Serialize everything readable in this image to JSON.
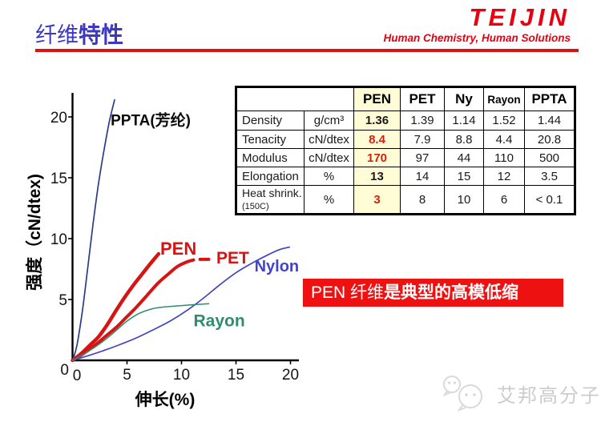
{
  "header": {
    "title_part1": "纤维",
    "title_part2": "特性",
    "underline_color": "#d61414"
  },
  "logo": {
    "brand": "TEIJIN",
    "tagline": "Human Chemistry, Human Solutions",
    "color": "#e60012"
  },
  "table": {
    "header_cols": [
      "PEN",
      "PET",
      "Ny",
      "Rayon",
      "PPTA"
    ],
    "highlight_color": "#fffcd6",
    "rows": [
      {
        "property": "Density",
        "unit": "g/cm³",
        "values": {
          "pen": "1.36",
          "pet": "1.39",
          "ny": "1.14",
          "rayon": "1.52",
          "ppta": "1.44"
        }
      },
      {
        "property": "Tenacity",
        "unit": "cN/dtex",
        "values": {
          "pen": "8.4",
          "pet": "7.9",
          "ny": "8.8",
          "rayon": "4.4",
          "ppta": "20.8"
        }
      },
      {
        "property": "Modulus",
        "unit": "cN/dtex",
        "values": {
          "pen": "170",
          "pet": "97",
          "ny": "44",
          "rayon": "110",
          "ppta": "500"
        }
      },
      {
        "property": "Elongation",
        "unit": "%",
        "values": {
          "pen": "13",
          "pet": "14",
          "ny": "15",
          "rayon": "12",
          "ppta": "3.5"
        }
      },
      {
        "property": "Heat shrink.",
        "property_sub": "(150C)",
        "unit": "%",
        "values": {
          "pen": "3",
          "pet": "8",
          "ny": "10",
          "rayon": "6",
          "ppta": "< 0.1"
        }
      }
    ]
  },
  "banner": {
    "part1": "PEN 纤维",
    "part2": "是典型的高模低缩",
    "bg": "#ee1111",
    "fg": "#ffffff"
  },
  "watermark": {
    "text": "艾邦高分子",
    "color": "#cccccc"
  },
  "chart_data": {
    "type": "line",
    "title": "",
    "xlabel": "伸长(%)",
    "ylabel": "强度（cN/dtex)",
    "xlim": [
      0,
      20
    ],
    "ylim": [
      0,
      20
    ],
    "xticks": [
      0,
      5,
      10,
      15,
      20
    ],
    "yticks": [
      0,
      5,
      10,
      15,
      20
    ],
    "grid": false,
    "legend_position": "inline-labels",
    "series": [
      {
        "name": "PPTA(芳纶)",
        "color": "#2c3a8c",
        "stroke_width": 1.7,
        "label_color": "#0b0b0b",
        "label_size": 19,
        "label_pos": [
          3.5,
          19.3
        ],
        "points": [
          [
            0,
            0
          ],
          [
            0.4,
            1.2
          ],
          [
            0.9,
            4.0
          ],
          [
            1.4,
            7.6
          ],
          [
            1.9,
            11.3
          ],
          [
            2.4,
            14.6
          ],
          [
            2.9,
            17.3
          ],
          [
            3.4,
            19.7
          ],
          [
            3.86,
            21.4
          ]
        ]
      },
      {
        "name": "PEN",
        "color": "#d61414",
        "stroke_width": 4.5,
        "label_color": "#d61414",
        "label_size": 22,
        "label_pos": [
          8.05,
          8.7
        ],
        "points": [
          [
            0,
            0
          ],
          [
            0.8,
            0.55
          ],
          [
            1.6,
            1.25
          ],
          [
            2.4,
            1.95
          ],
          [
            3.2,
            2.95
          ],
          [
            4,
            4.1
          ],
          [
            4.8,
            5.2
          ],
          [
            5.6,
            6.2
          ],
          [
            6.4,
            7.1
          ],
          [
            7.1,
            7.9
          ],
          [
            7.9,
            8.75
          ]
        ]
      },
      {
        "name": "PET",
        "color": "#d61414",
        "stroke_width": 4,
        "label_color": "#d61414",
        "label_size": 21,
        "label_pos": [
          13.2,
          7.95
        ],
        "end_dash": [
          [
            11.7,
            8.3
          ],
          [
            12.5,
            8.3
          ]
        ],
        "points": [
          [
            0,
            0
          ],
          [
            1,
            0.55
          ],
          [
            2,
            1.2
          ],
          [
            3,
            1.95
          ],
          [
            4,
            2.7
          ],
          [
            4.9,
            3.5
          ],
          [
            5.9,
            4.4
          ],
          [
            6.8,
            5.3
          ],
          [
            7.8,
            6.3
          ],
          [
            8.8,
            7.1
          ],
          [
            9.6,
            7.7
          ],
          [
            10.4,
            8.05
          ],
          [
            11.1,
            8.25
          ]
        ]
      },
      {
        "name": "Nylon",
        "color": "#4343c6",
        "stroke_width": 1.7,
        "label_color": "#4343c6",
        "label_size": 20,
        "label_pos": [
          16.7,
          7.3
        ],
        "points": [
          [
            0,
            0
          ],
          [
            1.5,
            0.4
          ],
          [
            3,
            0.85
          ],
          [
            4.5,
            1.35
          ],
          [
            6,
            1.9
          ],
          [
            7.5,
            2.55
          ],
          [
            9,
            3.25
          ],
          [
            10.5,
            4.1
          ],
          [
            12,
            5.1
          ],
          [
            13.5,
            6.2
          ],
          [
            15,
            7.2
          ],
          [
            16.5,
            8.0
          ],
          [
            18,
            8.7
          ],
          [
            19,
            9.1
          ],
          [
            19.9,
            9.3
          ]
        ]
      },
      {
        "name": "Rayon",
        "color": "#2f8d6e",
        "stroke_width": 1.5,
        "label_color": "#2f8d6e",
        "label_size": 21,
        "label_pos": [
          11.1,
          2.8
        ],
        "points": [
          [
            0,
            0
          ],
          [
            1,
            0.5
          ],
          [
            2,
            1.05
          ],
          [
            3,
            1.7
          ],
          [
            4,
            2.45
          ],
          [
            4.9,
            3.15
          ],
          [
            6,
            3.8
          ],
          [
            7,
            4.15
          ],
          [
            8,
            4.35
          ],
          [
            10,
            4.5
          ],
          [
            12.5,
            4.65
          ]
        ]
      }
    ]
  }
}
